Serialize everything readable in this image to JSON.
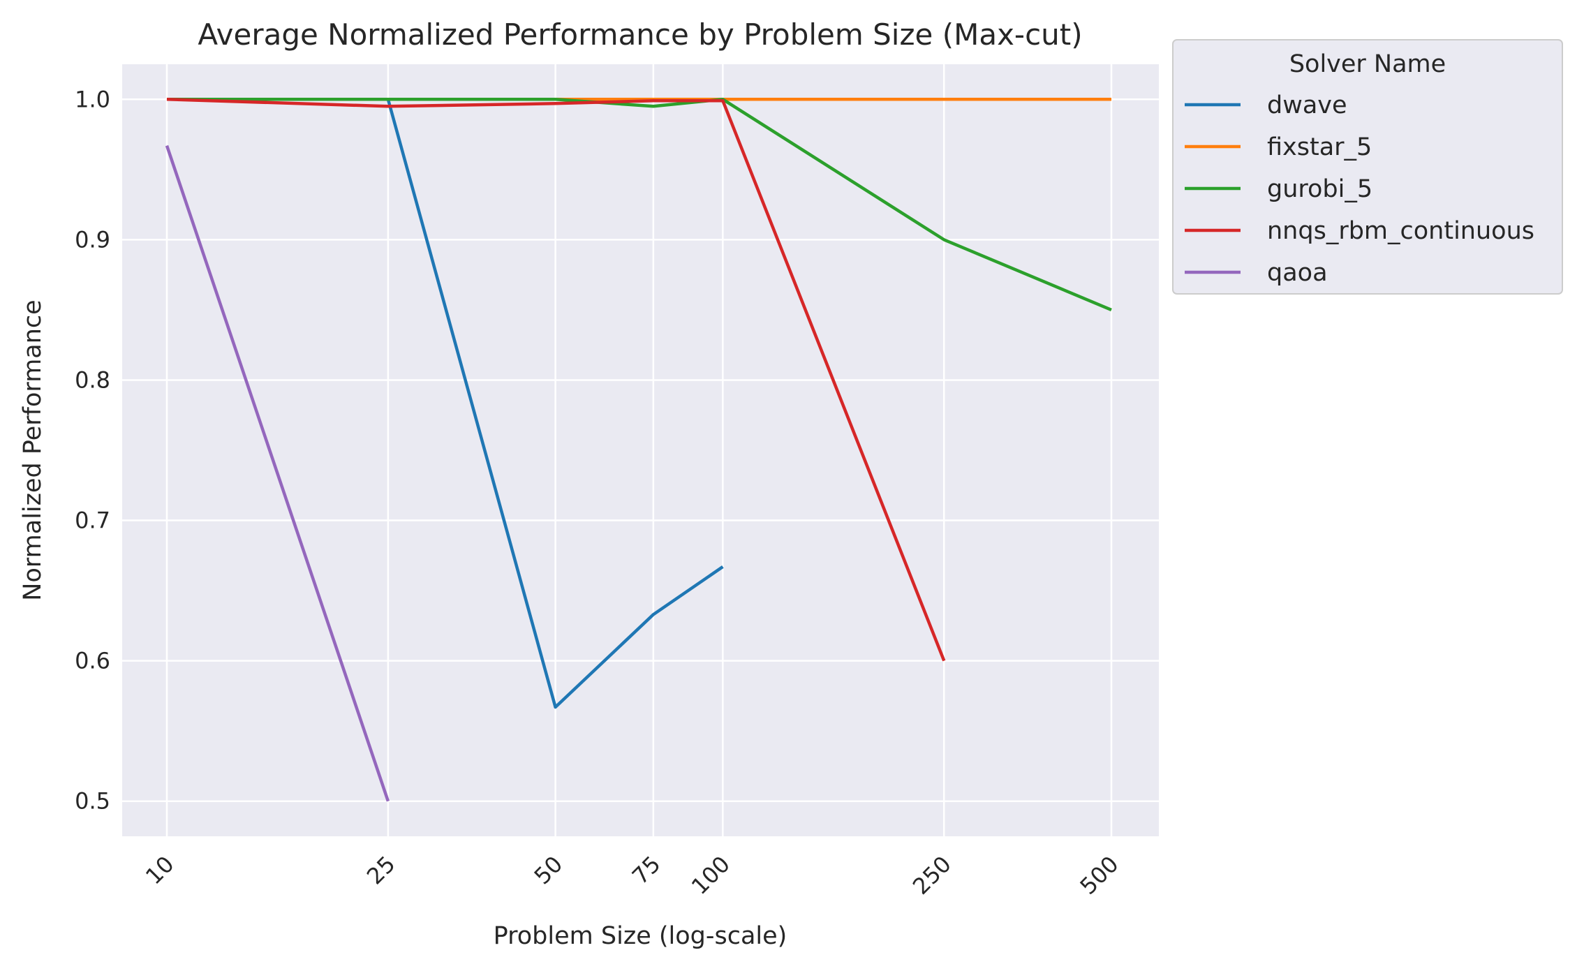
{
  "chart_data": {
    "type": "line",
    "title": "Average Normalized Performance by Problem Size (Max-cut)",
    "xlabel": "Problem Size (log-scale)",
    "ylabel": "Normalized Performance",
    "xscale": "log",
    "x_ticks": [
      10,
      25,
      50,
      75,
      100,
      250,
      500
    ],
    "x_tick_labels": [
      "10",
      "25",
      "50",
      "75",
      "100",
      "250",
      "500"
    ],
    "y_ticks": [
      0.5,
      0.6,
      0.7,
      0.8,
      0.9,
      1.0
    ],
    "y_tick_labels": [
      "0.5",
      "0.6",
      "0.7",
      "0.8",
      "0.9",
      "1.0"
    ],
    "ylim": [
      0.475,
      1.025
    ],
    "grid": true,
    "legend": {
      "title": "Solver Name",
      "placement": "outside-right-top"
    },
    "series": [
      {
        "name": "dwave",
        "color": "#1f77b4",
        "points": [
          [
            25,
            1.0
          ],
          [
            50,
            0.567
          ],
          [
            75,
            0.633
          ],
          [
            100,
            0.667
          ]
        ]
      },
      {
        "name": "fixstar_5",
        "color": "#ff7f0e",
        "points": [
          [
            50,
            1.0
          ],
          [
            75,
            1.0
          ],
          [
            100,
            1.0
          ],
          [
            250,
            1.0
          ],
          [
            500,
            1.0
          ]
        ]
      },
      {
        "name": "gurobi_5",
        "color": "#2ca02c",
        "points": [
          [
            10,
            1.0
          ],
          [
            25,
            1.0
          ],
          [
            50,
            1.0
          ],
          [
            75,
            0.995
          ],
          [
            100,
            1.0
          ],
          [
            250,
            0.9
          ],
          [
            500,
            0.85
          ]
        ]
      },
      {
        "name": "nnqs_rbm_continuous",
        "color": "#d62728",
        "points": [
          [
            10,
            1.0
          ],
          [
            25,
            0.995
          ],
          [
            50,
            0.997
          ],
          [
            75,
            0.999
          ],
          [
            100,
            0.999
          ],
          [
            250,
            0.6
          ]
        ]
      },
      {
        "name": "qaoa",
        "color": "#9467bd",
        "points": [
          [
            10,
            0.967
          ],
          [
            25,
            0.5
          ]
        ]
      }
    ]
  }
}
